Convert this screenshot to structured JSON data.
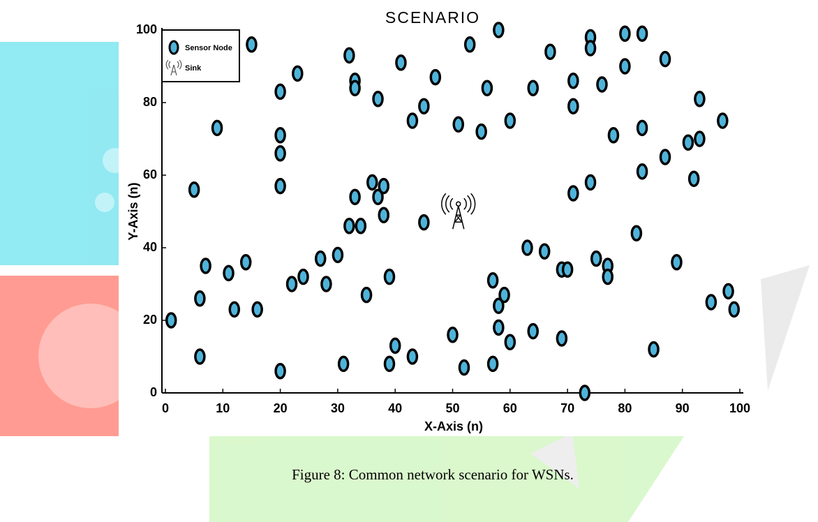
{
  "chart_data": {
    "type": "scatter",
    "title": "SCENARIO",
    "x_label": "X-Axis (n)",
    "y_label": "Y-Axis (n)",
    "xlim": [
      0,
      100
    ],
    "ylim": [
      0,
      100
    ],
    "xticks": [
      0,
      10,
      20,
      30,
      40,
      50,
      60,
      70,
      80,
      90,
      100
    ],
    "yticks": [
      0,
      20,
      40,
      60,
      80,
      100
    ],
    "legend": "upper left",
    "series": [
      {
        "name": "Sensor Node",
        "color": "#4fb3d9",
        "x": [
          1,
          5,
          6,
          6,
          7,
          9,
          11,
          12,
          14,
          15,
          16,
          20,
          20,
          20,
          20,
          20,
          22,
          23,
          24,
          27,
          28,
          30,
          31,
          32,
          32,
          33,
          33,
          33,
          34,
          35,
          36,
          37,
          37,
          38,
          38,
          39,
          39,
          40,
          41,
          43,
          43,
          45,
          45,
          47,
          50,
          51,
          52,
          53,
          55,
          56,
          57,
          57,
          58,
          58,
          58,
          59,
          60,
          60,
          63,
          64,
          64,
          66,
          67,
          69,
          69,
          70,
          71,
          71,
          71,
          73,
          74,
          74,
          74,
          75,
          76,
          77,
          77,
          78,
          80,
          80,
          82,
          83,
          83,
          83,
          85,
          87,
          87,
          89,
          91,
          92,
          93,
          93,
          95,
          97,
          98,
          99
        ],
        "values": [
          20,
          56,
          26,
          10,
          35,
          73,
          33,
          23,
          36,
          96,
          23,
          83,
          71,
          66,
          57,
          6,
          30,
          88,
          32,
          37,
          30,
          38,
          8,
          93,
          46,
          86,
          84,
          54,
          46,
          27,
          58,
          81,
          54,
          57,
          49,
          32,
          8,
          13,
          91,
          75,
          10,
          79,
          47,
          87,
          16,
          74,
          7,
          96,
          72,
          84,
          31,
          8,
          100,
          24,
          18,
          27,
          75,
          14,
          40,
          84,
          17,
          39,
          94,
          34,
          15,
          34,
          86,
          79,
          55,
          0,
          98,
          95,
          58,
          37,
          85,
          35,
          32,
          71,
          99,
          90,
          44,
          99,
          73,
          61,
          12,
          92,
          65,
          36,
          69,
          59,
          81,
          70,
          25,
          75,
          28,
          23
        ]
      },
      {
        "name": "Sink",
        "color": "#000000",
        "x": [
          51
        ],
        "values": [
          49
        ]
      }
    ]
  },
  "caption": "Figure 8: Common network scenario for WSNs."
}
